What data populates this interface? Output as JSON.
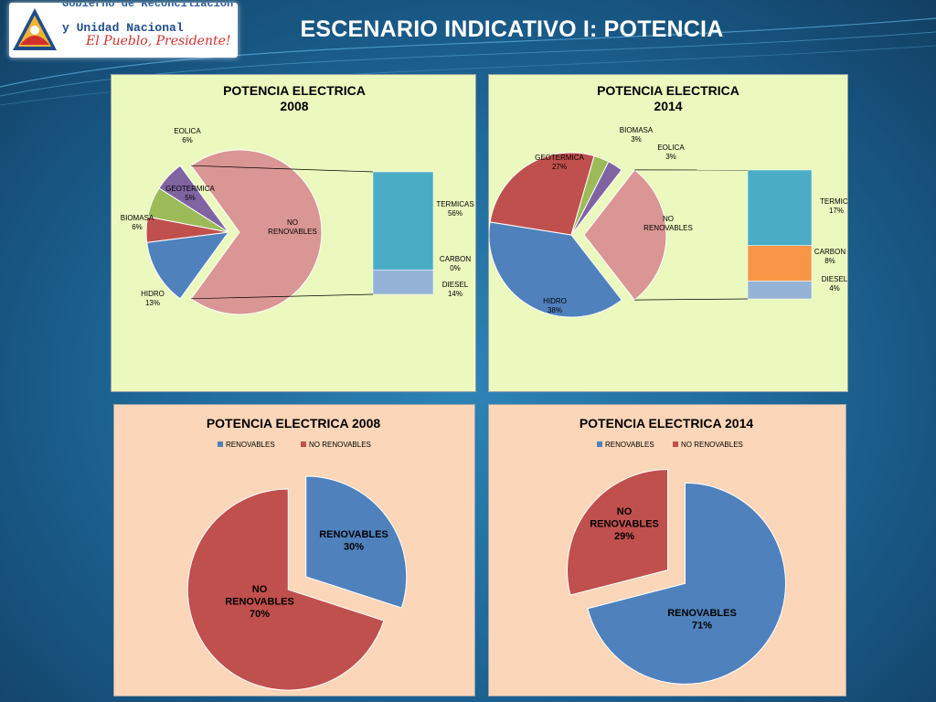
{
  "header": {
    "logo_line1": "Gobierno de Reconciliación",
    "logo_line2": "y Unidad Nacional",
    "logo_slogan": "El Pueblo, Presidente!",
    "title": "ESCENARIO INDICATIVO I: POTENCIA"
  },
  "colors": {
    "pink": "#d99694",
    "blue": "#4f81bd",
    "red": "#c0504d",
    "green": "#9bbb59",
    "purple": "#8064a2",
    "teal": "#4bacc6",
    "orange": "#f79646",
    "light_blue": "#95b3d7"
  },
  "chart_data": [
    {
      "type": "pie",
      "subtype": "pie-of-pie",
      "title_lines": [
        "POTENCIA ELECTRICA",
        "2008"
      ],
      "slices": [
        {
          "label": "NO RENOVABLES",
          "value": 70,
          "color": "#d99694"
        },
        {
          "label": "HIDRO",
          "value": 13,
          "value_label": "13%",
          "color": "#4f81bd"
        },
        {
          "label": "GEOTERMICA",
          "value": 5,
          "value_label": "5%",
          "color": "#c0504d"
        },
        {
          "label": "BIOMASA",
          "value": 6,
          "value_label": "6%",
          "color": "#9bbb59"
        },
        {
          "label": "EOLICA",
          "value": 6,
          "value_label": "6%",
          "color": "#8064a2"
        }
      ],
      "breakdown": [
        {
          "label": "TERMICAS",
          "value": 56,
          "value_label": "56%",
          "color": "#4bacc6"
        },
        {
          "label": "CARBON",
          "value": 0,
          "value_label": "0%",
          "color": "#f79646"
        },
        {
          "label": "DIESEL",
          "value": 14,
          "value_label": "14%",
          "color": "#95b3d7"
        }
      ]
    },
    {
      "type": "pie",
      "subtype": "pie-of-pie",
      "title_lines": [
        "POTENCIA ELECTRICA",
        "2014"
      ],
      "slices": [
        {
          "label": "NO RENOVABLES",
          "value": 29,
          "color": "#d99694"
        },
        {
          "label": "HIDRO",
          "value": 38,
          "value_label": "38%",
          "color": "#4f81bd"
        },
        {
          "label": "GEOTERMICA",
          "value": 27,
          "value_label": "27%",
          "color": "#c0504d"
        },
        {
          "label": "BIOMASA",
          "value": 3,
          "value_label": "3%",
          "color": "#9bbb59"
        },
        {
          "label": "EOLICA",
          "value": 3,
          "value_label": "3%",
          "color": "#8064a2"
        }
      ],
      "breakdown": [
        {
          "label": "TERMICA",
          "value": 17,
          "value_label": "17%",
          "color": "#4bacc6"
        },
        {
          "label": "CARBON",
          "value": 8,
          "value_label": "8%",
          "color": "#f79646"
        },
        {
          "label": "DIESEL",
          "value": 4,
          "value_label": "4%",
          "color": "#95b3d7"
        }
      ]
    },
    {
      "type": "pie",
      "title": "POTENCIA ELECTRICA 2008",
      "legend_position": "top",
      "slices": [
        {
          "label": "RENOVABLES",
          "value": 30,
          "value_label": "30%",
          "color": "#4f81bd"
        },
        {
          "label": "NO RENOVABLES",
          "value": 70,
          "value_label": "70%",
          "color": "#c0504d"
        }
      ]
    },
    {
      "type": "pie",
      "title": "POTENCIA ELECTRICA 2014",
      "legend_position": "top",
      "slices": [
        {
          "label": "RENOVABLES",
          "value": 71,
          "value_label": "71%",
          "color": "#4f81bd"
        },
        {
          "label": "NO RENOVABLES",
          "value": 29,
          "value_label": "29%",
          "color": "#c0504d"
        }
      ]
    }
  ]
}
